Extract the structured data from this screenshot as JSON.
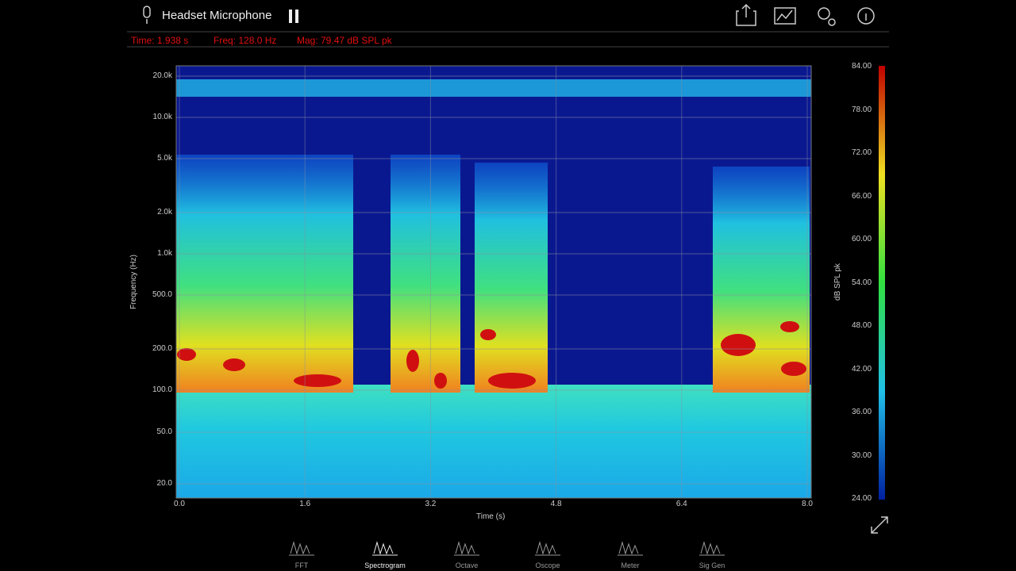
{
  "header": {
    "device": "Headset Microphone"
  },
  "status": {
    "time": "Time: 1.938 s",
    "freq": "Freq: 128.0 Hz",
    "mag": "Mag: 79.47 dB SPL pk"
  },
  "plot": {
    "y_label": "Frequency (Hz)",
    "x_label": "Time (s)",
    "y_ticks": [
      "20.0k",
      "10.0k",
      "5.0k",
      "2.0k",
      "1.0k",
      "500.0",
      "200.0",
      "100.0",
      "50.0",
      "20.0"
    ],
    "x_ticks": [
      "0.0",
      "1.6",
      "3.2",
      "4.8",
      "6.4",
      "8.0"
    ]
  },
  "colorbar": {
    "label": "dB SPL pk",
    "ticks": [
      "84.00",
      "78.00",
      "72.00",
      "66.00",
      "60.00",
      "54.00",
      "48.00",
      "42.00",
      "36.00",
      "30.00",
      "24.00"
    ]
  },
  "tabs": [
    {
      "label": "FFT"
    },
    {
      "label": "Spectrogram"
    },
    {
      "label": "Octave"
    },
    {
      "label": "Oscope"
    },
    {
      "label": "Meter"
    },
    {
      "label": "Sig Gen"
    }
  ]
}
